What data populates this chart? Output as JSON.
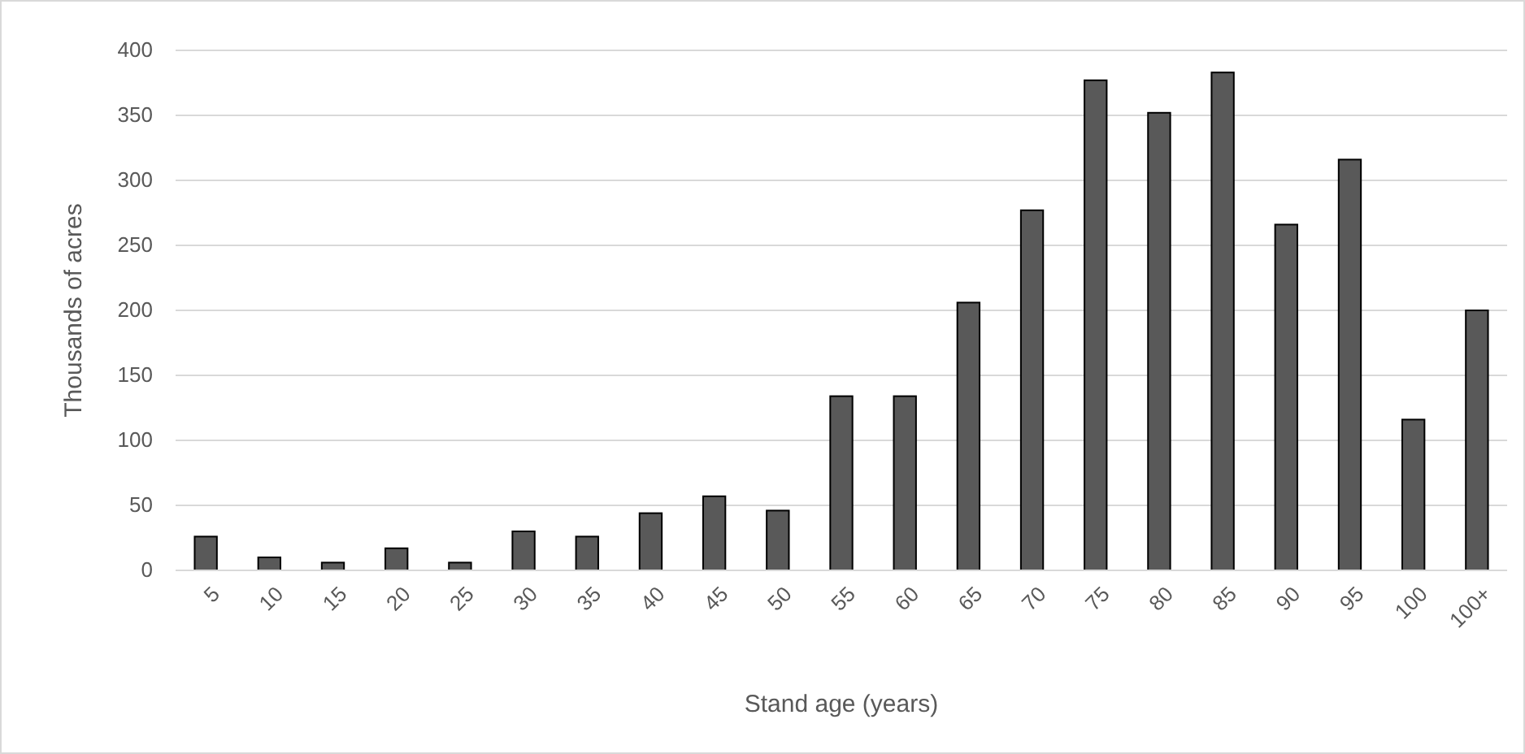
{
  "chart_data": {
    "type": "bar",
    "xlabel": "Stand age (years)",
    "ylabel": "Thousands of acres",
    "categories": [
      "5",
      "10",
      "15",
      "20",
      "25",
      "30",
      "35",
      "40",
      "45",
      "50",
      "55",
      "60",
      "65",
      "70",
      "75",
      "80",
      "85",
      "90",
      "95",
      "100",
      "100+"
    ],
    "values": [
      26,
      10,
      6,
      17,
      6,
      30,
      26,
      44,
      57,
      46,
      134,
      134,
      206,
      277,
      377,
      352,
      383,
      266,
      316,
      116,
      200
    ],
    "color": "#595959",
    "ylim": [
      0,
      400
    ],
    "yticks": [
      0,
      50,
      100,
      150,
      200,
      250,
      300,
      350,
      400
    ],
    "grid": "y"
  }
}
